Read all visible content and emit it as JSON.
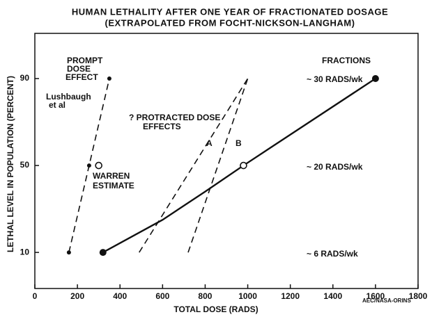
{
  "chart_data": {
    "type": "line",
    "title": "HUMAN LETHALITY AFTER ONE YEAR OF FRACTIONATED DOSAGE",
    "subtitle": "(EXTRAPOLATED FROM FOCHT-NICKSON-LANGHAM)",
    "x_label": "TOTAL DOSE (RADS)",
    "y_label": "LETHAL LEVEL IN POPULATION (PERCENT)",
    "xlim": [
      0,
      1800
    ],
    "xticks": [
      0,
      200,
      400,
      600,
      800,
      1000,
      1200,
      1400,
      1600,
      1800
    ],
    "ylim": [
      -6.6,
      110.8
    ],
    "yticks": [
      10,
      50,
      90
    ],
    "series": [
      {
        "x": [
          160,
          255,
          350
        ],
        "values": [
          10,
          50,
          90
        ],
        "dash": true,
        "markers": [
          "dot",
          "dot",
          "dot"
        ]
      },
      {
        "x": [
          490,
          1000
        ],
        "values": [
          10,
          90
        ],
        "dash": true,
        "markers": [
          null,
          null
        ]
      },
      {
        "x": [
          720,
          1000
        ],
        "values": [
          10,
          90
        ],
        "dash": true,
        "markers": [
          null,
          null
        ]
      },
      {
        "x": [
          320,
          600,
          800,
          980,
          1600
        ],
        "values": [
          10,
          25,
          38,
          50,
          90
        ],
        "dash": false,
        "markers": [
          "big",
          null,
          null,
          "open",
          "big"
        ]
      },
      {
        "x": [
          300
        ],
        "values": [
          50
        ],
        "dash": false,
        "markers": [
          "open"
        ]
      }
    ],
    "annotations": [
      "PROMPT",
      "DOSE",
      "EFFECT",
      "Lushbaugh",
      "et al",
      "WARREN",
      "ESTIMATE",
      "? PROTRACTED DOSE",
      "EFFECTS",
      "A",
      "B",
      "FRACTIONS",
      "~ 30 RADS/wk",
      "~ 20 RADS/wk",
      "~ 6 RADS/wk",
      "AEC/NASA-ORINS"
    ]
  }
}
